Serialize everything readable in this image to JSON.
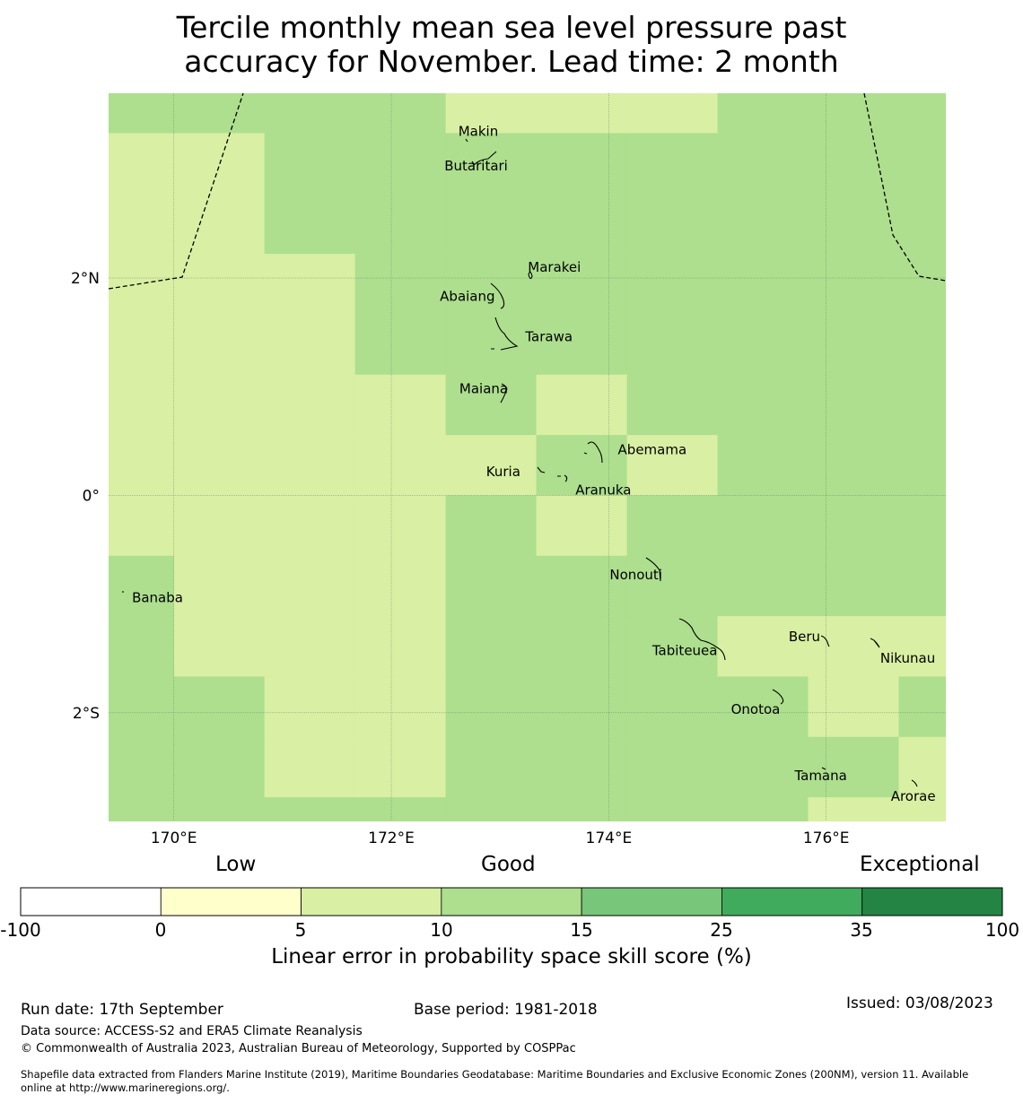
{
  "title": {
    "line1": "Tercile monthly mean sea level pressure past",
    "line2": "accuracy for November. Lead time: 2 month"
  },
  "map": {
    "x_ticks": [
      "170°E",
      "172°E",
      "174°E",
      "176°E"
    ],
    "y_ticks": [
      "2°N",
      "0°",
      "2°S"
    ],
    "lon_range": [
      169.4,
      177.1
    ],
    "lat_range": [
      -3.0,
      3.7
    ],
    "grid_lons": [
      170,
      172,
      174,
      176
    ],
    "grid_lats": [
      2,
      0,
      -2
    ],
    "colors": {
      "c5_10": "#d9efa3",
      "c10_15": "#addf8e",
      "grid": "#6e8a6e"
    },
    "skill_grid": {
      "description": "categories per cell: 1 = 5 to 10, 2 = 10 to 15",
      "col_lons": [
        169.4,
        170.0,
        170.8333,
        171.6667,
        172.5,
        173.3333,
        174.1667,
        175.0,
        175.8333,
        176.6667,
        177.1
      ],
      "row_lats": [
        3.7,
        3.3333,
        2.2222,
        1.1111,
        0.5556,
        0.0,
        -0.5556,
        -1.1111,
        -1.6667,
        -2.2222,
        -2.7778,
        -3.0
      ],
      "cells": [
        [
          2,
          2,
          2,
          2,
          1,
          1,
          1,
          2,
          2,
          2
        ],
        [
          1,
          1,
          2,
          2,
          2,
          2,
          2,
          2,
          2,
          2
        ],
        [
          1,
          1,
          1,
          2,
          2,
          2,
          2,
          2,
          2,
          2
        ],
        [
          1,
          1,
          1,
          1,
          2,
          1,
          2,
          2,
          2,
          2
        ],
        [
          1,
          1,
          1,
          1,
          1,
          2,
          1,
          2,
          2,
          2
        ],
        [
          1,
          1,
          1,
          1,
          2,
          1,
          2,
          2,
          2,
          2
        ],
        [
          2,
          1,
          1,
          1,
          2,
          2,
          2,
          2,
          2,
          2
        ],
        [
          2,
          1,
          1,
          1,
          2,
          2,
          2,
          1,
          1,
          1
        ],
        [
          2,
          2,
          1,
          1,
          2,
          2,
          2,
          2,
          1,
          2
        ],
        [
          2,
          2,
          1,
          1,
          2,
          2,
          2,
          2,
          2,
          1
        ],
        [
          2,
          2,
          2,
          2,
          2,
          2,
          2,
          2,
          1,
          1
        ]
      ]
    },
    "islands": [
      {
        "name": "Makin",
        "lon": 172.8,
        "lat": 3.35
      },
      {
        "name": "Butaritari",
        "lon": 172.78,
        "lat": 3.03
      },
      {
        "name": "Marakei",
        "lon": 173.5,
        "lat": 2.1
      },
      {
        "name": "Abaiang",
        "lon": 172.7,
        "lat": 1.83
      },
      {
        "name": "Tarawa",
        "lon": 173.45,
        "lat": 1.46
      },
      {
        "name": "Maiana",
        "lon": 172.85,
        "lat": 0.98
      },
      {
        "name": "Abemama",
        "lon": 174.4,
        "lat": 0.42
      },
      {
        "name": "Kuria",
        "lon": 173.03,
        "lat": 0.22
      },
      {
        "name": "Aranuka",
        "lon": 173.95,
        "lat": 0.05
      },
      {
        "name": "Nonouti",
        "lon": 174.25,
        "lat": -0.73
      },
      {
        "name": "Banaba",
        "lon": 169.85,
        "lat": -0.94
      },
      {
        "name": "Tabiteuea",
        "lon": 174.7,
        "lat": -1.43
      },
      {
        "name": "Beru",
        "lon": 175.8,
        "lat": -1.3
      },
      {
        "name": "Nikunau",
        "lon": 176.75,
        "lat": -1.5
      },
      {
        "name": "Onotoa",
        "lon": 175.35,
        "lat": -1.97
      },
      {
        "name": "Tamana",
        "lon": 175.95,
        "lat": -2.58
      },
      {
        "name": "Arorae",
        "lon": 176.8,
        "lat": -2.77
      }
    ]
  },
  "colorbar": {
    "categories": [
      "Low",
      "Good",
      "Exceptional"
    ],
    "boundaries": [
      "-100",
      "0",
      "5",
      "10",
      "15",
      "25",
      "35",
      "100"
    ],
    "colors": [
      "#ffffff",
      "#ffffcc",
      "#d9efa3",
      "#addf8e",
      "#78c679",
      "#41ab5d",
      "#238443"
    ],
    "title": "Linear error in probability space skill score (%)"
  },
  "footer": {
    "run_date": "Run date: 17th September",
    "base_period": "Base period: 1981-2018",
    "issued": "Issued: 03/08/2023",
    "data_source": "Data source: ACCESS-S2 and ERA5 Climate Reanalysis",
    "copyright": "© Commonwealth of Australia 2023, Australian Bureau of Meteorology, Supported by COSPPac",
    "shapefile_line1": "Shapefile data extracted from Flanders Marine Institute (2019), Maritime Boundaries Geodatabase: Maritime Boundaries and Exclusive Economic Zones (200NM), version 11. Available",
    "shapefile_line2": "online at http://www.marineregions.org/."
  }
}
